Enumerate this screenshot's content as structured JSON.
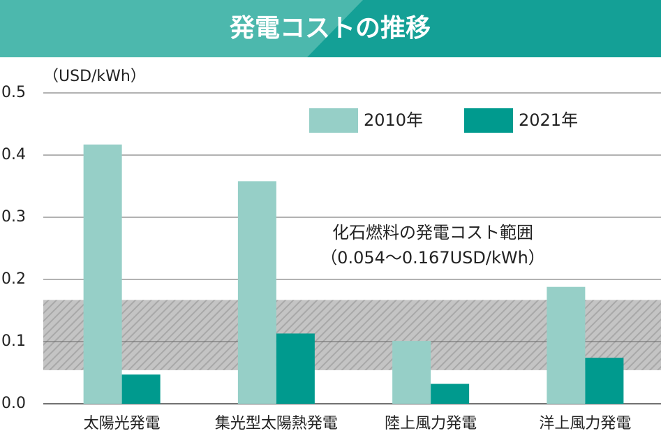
{
  "chart_data": {
    "type": "bar",
    "title": "発電コストの推移",
    "y_label": "（USD/kWh）",
    "categories": [
      "太陽光発電",
      "集光型太陽熱発電",
      "陸上風力発電",
      "洋上風力発電"
    ],
    "series": [
      {
        "name": "2010年",
        "color": "#96cfc7",
        "values": [
          0.417,
          0.358,
          0.101,
          0.188
        ]
      },
      {
        "name": "2021年",
        "color": "#009a8e",
        "values": [
          0.047,
          0.113,
          0.032,
          0.074
        ]
      }
    ],
    "ylim": [
      0,
      0.5
    ],
    "yticks": [
      {
        "value": 0,
        "label": "0.0"
      },
      0.1,
      0.2,
      0.3,
      0.4,
      0.5
    ],
    "grid": true,
    "legend": "top-right",
    "band": {
      "range": [
        0.054,
        0.167
      ],
      "label_lines": [
        "化石燃料の発電コスト範囲",
        "（0.054～0.167USD/kWh）"
      ]
    }
  }
}
